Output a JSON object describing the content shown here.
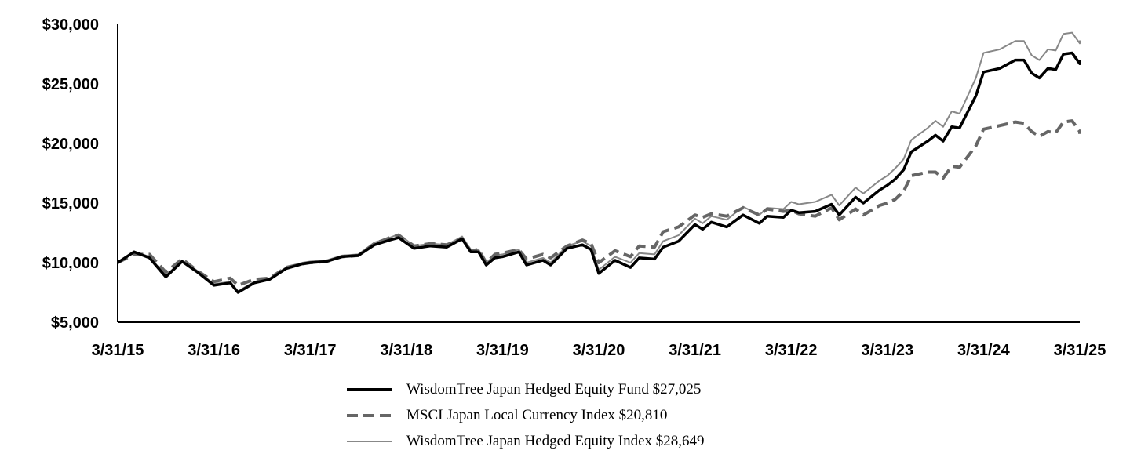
{
  "chart_data": {
    "type": "line",
    "title": "",
    "xlabel": "",
    "ylabel": "",
    "ylim": [
      5000,
      30000
    ],
    "yticks": [
      "$5,000",
      "$10,000",
      "$15,000",
      "$20,000",
      "$25,000",
      "$30,000"
    ],
    "ytick_values": [
      5000,
      10000,
      15000,
      20000,
      25000,
      30000
    ],
    "xticks": [
      "3/31/15",
      "3/31/16",
      "3/31/17",
      "3/31/18",
      "3/31/19",
      "3/31/20",
      "3/31/21",
      "3/31/22",
      "3/31/23",
      "3/31/24",
      "3/31/25"
    ],
    "xtick_years": [
      2015,
      2016,
      2017,
      2018,
      2019,
      2020,
      2021,
      2022,
      2023,
      2024,
      2025
    ],
    "xlim": [
      2015,
      2025
    ],
    "grid": false,
    "legend_position": "bottom",
    "series": [
      {
        "name": "WisdomTree Japan Hedged Equity Fund $27,025",
        "color": "#000000",
        "style": "solid-thick",
        "points": [
          [
            2015.0,
            10000
          ],
          [
            2015.17,
            10900
          ],
          [
            2015.33,
            10400
          ],
          [
            2015.5,
            8800
          ],
          [
            2015.67,
            10100
          ],
          [
            2015.83,
            9200
          ],
          [
            2016.0,
            8100
          ],
          [
            2016.17,
            8300
          ],
          [
            2016.25,
            7500
          ],
          [
            2016.42,
            8300
          ],
          [
            2016.58,
            8600
          ],
          [
            2016.75,
            9500
          ],
          [
            2016.92,
            9900
          ],
          [
            2017.0,
            10000
          ],
          [
            2017.17,
            10100
          ],
          [
            2017.33,
            10500
          ],
          [
            2017.5,
            10600
          ],
          [
            2017.67,
            11500
          ],
          [
            2017.83,
            11900
          ],
          [
            2017.92,
            12100
          ],
          [
            2018.08,
            11200
          ],
          [
            2018.25,
            11400
          ],
          [
            2018.42,
            11300
          ],
          [
            2018.58,
            12000
          ],
          [
            2018.67,
            10900
          ],
          [
            2018.75,
            10900
          ],
          [
            2018.83,
            9800
          ],
          [
            2018.92,
            10400
          ],
          [
            2019.0,
            10500
          ],
          [
            2019.17,
            10900
          ],
          [
            2019.25,
            9800
          ],
          [
            2019.42,
            10200
          ],
          [
            2019.5,
            9800
          ],
          [
            2019.67,
            11200
          ],
          [
            2019.83,
            11500
          ],
          [
            2019.92,
            11100
          ],
          [
            2020.0,
            9100
          ],
          [
            2020.17,
            10200
          ],
          [
            2020.33,
            9600
          ],
          [
            2020.42,
            10400
          ],
          [
            2020.58,
            10300
          ],
          [
            2020.67,
            11300
          ],
          [
            2020.83,
            11800
          ],
          [
            2021.0,
            13200
          ],
          [
            2021.08,
            12800
          ],
          [
            2021.17,
            13400
          ],
          [
            2021.33,
            13000
          ],
          [
            2021.5,
            14000
          ],
          [
            2021.67,
            13300
          ],
          [
            2021.75,
            13900
          ],
          [
            2021.92,
            13800
          ],
          [
            2022.0,
            14400
          ],
          [
            2022.08,
            14200
          ],
          [
            2022.25,
            14300
          ],
          [
            2022.42,
            14900
          ],
          [
            2022.5,
            14000
          ],
          [
            2022.67,
            15500
          ],
          [
            2022.75,
            15000
          ],
          [
            2022.92,
            16100
          ],
          [
            2023.0,
            16500
          ],
          [
            2023.08,
            17000
          ],
          [
            2023.17,
            17800
          ],
          [
            2023.25,
            19300
          ],
          [
            2023.42,
            20200
          ],
          [
            2023.5,
            20700
          ],
          [
            2023.58,
            20200
          ],
          [
            2023.67,
            21400
          ],
          [
            2023.75,
            21300
          ],
          [
            2023.92,
            24000
          ],
          [
            2024.0,
            26000
          ],
          [
            2024.17,
            26300
          ],
          [
            2024.33,
            27000
          ],
          [
            2024.42,
            27000
          ],
          [
            2024.5,
            25900
          ],
          [
            2024.58,
            25500
          ],
          [
            2024.67,
            26300
          ],
          [
            2024.75,
            26200
          ],
          [
            2024.83,
            27500
          ],
          [
            2024.92,
            27600
          ],
          [
            2025.0,
            26700
          ],
          [
            2025.0,
            27025
          ]
        ]
      },
      {
        "name": "MSCI Japan Local Currency Index $20,810",
        "color": "#666666",
        "style": "dashed",
        "points": [
          [
            2015.0,
            10000
          ],
          [
            2015.17,
            10700
          ],
          [
            2015.33,
            10700
          ],
          [
            2015.5,
            9200
          ],
          [
            2015.67,
            10300
          ],
          [
            2015.83,
            9300
          ],
          [
            2016.0,
            8400
          ],
          [
            2016.17,
            8700
          ],
          [
            2016.25,
            8100
          ],
          [
            2016.42,
            8600
          ],
          [
            2016.58,
            8700
          ],
          [
            2016.75,
            9600
          ],
          [
            2016.92,
            9900
          ],
          [
            2017.0,
            10000
          ],
          [
            2017.17,
            10100
          ],
          [
            2017.33,
            10500
          ],
          [
            2017.5,
            10600
          ],
          [
            2017.67,
            11600
          ],
          [
            2017.83,
            12100
          ],
          [
            2017.92,
            12300
          ],
          [
            2018.08,
            11400
          ],
          [
            2018.25,
            11600
          ],
          [
            2018.42,
            11500
          ],
          [
            2018.58,
            12000
          ],
          [
            2018.67,
            11000
          ],
          [
            2018.75,
            11100
          ],
          [
            2018.83,
            10000
          ],
          [
            2018.92,
            10700
          ],
          [
            2019.0,
            10800
          ],
          [
            2019.17,
            11100
          ],
          [
            2019.25,
            10300
          ],
          [
            2019.42,
            10700
          ],
          [
            2019.5,
            10400
          ],
          [
            2019.67,
            11400
          ],
          [
            2019.83,
            11900
          ],
          [
            2019.92,
            11600
          ],
          [
            2020.0,
            10000
          ],
          [
            2020.17,
            11000
          ],
          [
            2020.33,
            10500
          ],
          [
            2020.42,
            11400
          ],
          [
            2020.58,
            11300
          ],
          [
            2020.67,
            12600
          ],
          [
            2020.83,
            13000
          ],
          [
            2021.0,
            14000
          ],
          [
            2021.08,
            13800
          ],
          [
            2021.17,
            14100
          ],
          [
            2021.33,
            13900
          ],
          [
            2021.5,
            14600
          ],
          [
            2021.67,
            14000
          ],
          [
            2021.75,
            14500
          ],
          [
            2021.92,
            14300
          ],
          [
            2022.0,
            14400
          ],
          [
            2022.08,
            14100
          ],
          [
            2022.25,
            13900
          ],
          [
            2022.42,
            14600
          ],
          [
            2022.5,
            13600
          ],
          [
            2022.67,
            14500
          ],
          [
            2022.75,
            14000
          ],
          [
            2022.92,
            14800
          ],
          [
            2023.0,
            15000
          ],
          [
            2023.08,
            15300
          ],
          [
            2023.17,
            16000
          ],
          [
            2023.25,
            17300
          ],
          [
            2023.42,
            17600
          ],
          [
            2023.5,
            17600
          ],
          [
            2023.58,
            17100
          ],
          [
            2023.67,
            18100
          ],
          [
            2023.75,
            18000
          ],
          [
            2023.92,
            19800
          ],
          [
            2024.0,
            21200
          ],
          [
            2024.17,
            21500
          ],
          [
            2024.33,
            21800
          ],
          [
            2024.42,
            21700
          ],
          [
            2024.5,
            21000
          ],
          [
            2024.58,
            20600
          ],
          [
            2024.67,
            21000
          ],
          [
            2024.75,
            20900
          ],
          [
            2024.83,
            21800
          ],
          [
            2024.92,
            21900
          ],
          [
            2025.0,
            21000
          ],
          [
            2025.0,
            20810
          ]
        ]
      },
      {
        "name": "WisdomTree Japan Hedged Equity Index $28,649",
        "color": "#888888",
        "style": "solid-thin",
        "points": [
          [
            2015.0,
            10000
          ],
          [
            2015.17,
            10950
          ],
          [
            2015.33,
            10500
          ],
          [
            2015.5,
            8900
          ],
          [
            2015.67,
            10200
          ],
          [
            2015.83,
            9300
          ],
          [
            2016.0,
            8200
          ],
          [
            2016.17,
            8400
          ],
          [
            2016.25,
            7600
          ],
          [
            2016.42,
            8400
          ],
          [
            2016.58,
            8700
          ],
          [
            2016.75,
            9600
          ],
          [
            2016.92,
            10000
          ],
          [
            2017.0,
            10100
          ],
          [
            2017.17,
            10200
          ],
          [
            2017.33,
            10600
          ],
          [
            2017.5,
            10700
          ],
          [
            2017.67,
            11700
          ],
          [
            2017.83,
            12100
          ],
          [
            2017.92,
            12400
          ],
          [
            2018.08,
            11400
          ],
          [
            2018.25,
            11600
          ],
          [
            2018.42,
            11500
          ],
          [
            2018.58,
            12200
          ],
          [
            2018.67,
            11100
          ],
          [
            2018.75,
            11100
          ],
          [
            2018.83,
            10000
          ],
          [
            2018.92,
            10600
          ],
          [
            2019.0,
            10700
          ],
          [
            2019.17,
            11100
          ],
          [
            2019.25,
            10000
          ],
          [
            2019.42,
            10400
          ],
          [
            2019.5,
            10000
          ],
          [
            2019.67,
            11400
          ],
          [
            2019.83,
            11800
          ],
          [
            2019.92,
            11400
          ],
          [
            2020.0,
            9400
          ],
          [
            2020.17,
            10500
          ],
          [
            2020.33,
            10000
          ],
          [
            2020.42,
            10800
          ],
          [
            2020.58,
            10700
          ],
          [
            2020.67,
            11800
          ],
          [
            2020.83,
            12300
          ],
          [
            2021.0,
            13700
          ],
          [
            2021.08,
            13300
          ],
          [
            2021.17,
            13900
          ],
          [
            2021.33,
            13600
          ],
          [
            2021.5,
            14700
          ],
          [
            2021.67,
            14000
          ],
          [
            2021.75,
            14600
          ],
          [
            2021.92,
            14500
          ],
          [
            2022.0,
            15100
          ],
          [
            2022.08,
            14900
          ],
          [
            2022.25,
            15100
          ],
          [
            2022.42,
            15700
          ],
          [
            2022.5,
            14800
          ],
          [
            2022.67,
            16300
          ],
          [
            2022.75,
            15800
          ],
          [
            2022.92,
            16900
          ],
          [
            2023.0,
            17300
          ],
          [
            2023.08,
            17900
          ],
          [
            2023.17,
            18700
          ],
          [
            2023.25,
            20300
          ],
          [
            2023.42,
            21300
          ],
          [
            2023.5,
            21900
          ],
          [
            2023.58,
            21400
          ],
          [
            2023.67,
            22700
          ],
          [
            2023.75,
            22500
          ],
          [
            2023.92,
            25500
          ],
          [
            2024.0,
            27600
          ],
          [
            2024.17,
            27900
          ],
          [
            2024.33,
            28600
          ],
          [
            2024.42,
            28600
          ],
          [
            2024.5,
            27400
          ],
          [
            2024.58,
            27000
          ],
          [
            2024.67,
            27900
          ],
          [
            2024.75,
            27800
          ],
          [
            2024.83,
            29200
          ],
          [
            2024.92,
            29300
          ],
          [
            2025.0,
            28400
          ],
          [
            2025.0,
            28649
          ]
        ]
      }
    ]
  }
}
